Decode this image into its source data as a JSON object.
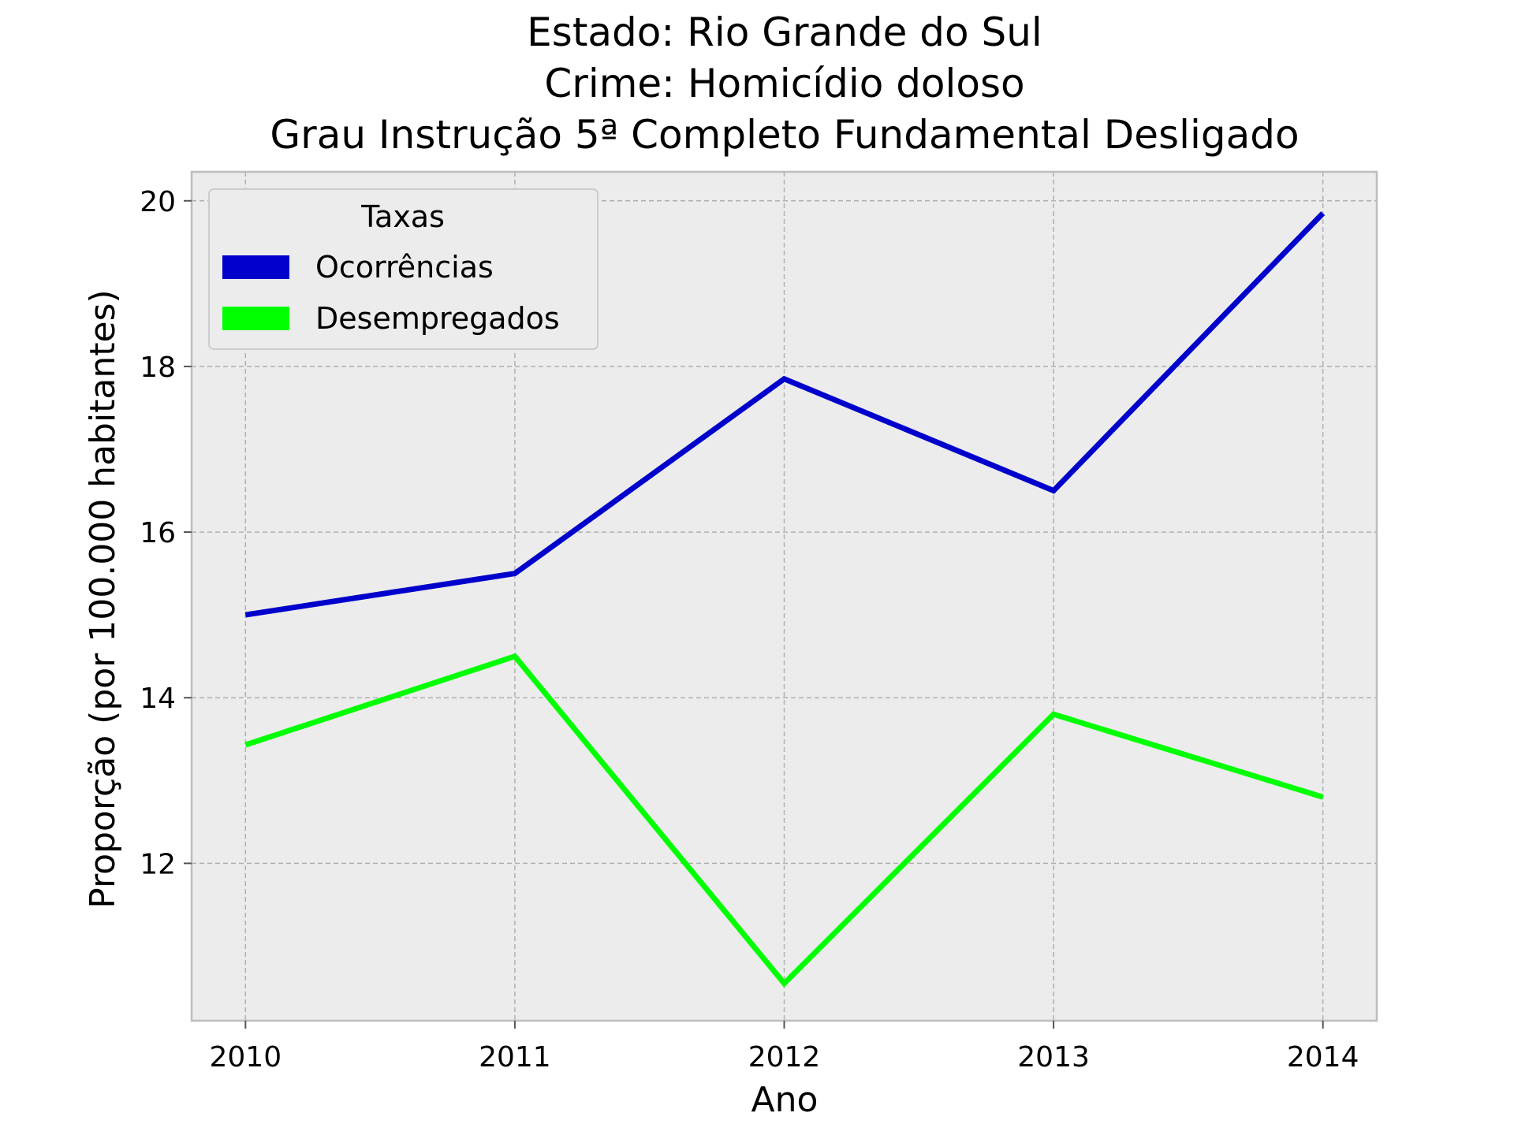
{
  "chart_data": {
    "type": "line",
    "title_lines": [
      "Estado: Rio Grande do Sul",
      "Crime: Homicídio doloso",
      "Grau Instrução  5ª Completo Fundamental   Desligado"
    ],
    "xlabel": "Ano",
    "ylabel": "Proporção (por 100.000 habitantes)",
    "x": [
      2010,
      2011,
      2012,
      2013,
      2014
    ],
    "x_tick_labels": [
      "2010",
      "2011",
      "2012",
      "2013",
      "2014"
    ],
    "y_ticks": [
      12,
      14,
      16,
      18,
      20
    ],
    "y_tick_labels": [
      "12",
      "14",
      "16",
      "18",
      "20"
    ],
    "xlim": [
      2009.8,
      2014.2
    ],
    "ylim": [
      10.1,
      20.35
    ],
    "grid": true,
    "grid_style": "dashed",
    "background": "#ececec",
    "legend": {
      "title": "Taxas",
      "placement": "top-left"
    },
    "series": [
      {
        "name": "Ocorrências",
        "color": "#0000cc",
        "values": [
          15.0,
          15.5,
          17.85,
          16.5,
          19.85
        ]
      },
      {
        "name": "Desempregados",
        "color": "#00ff00",
        "values": [
          13.43,
          14.5,
          10.55,
          13.8,
          12.8
        ]
      }
    ]
  }
}
